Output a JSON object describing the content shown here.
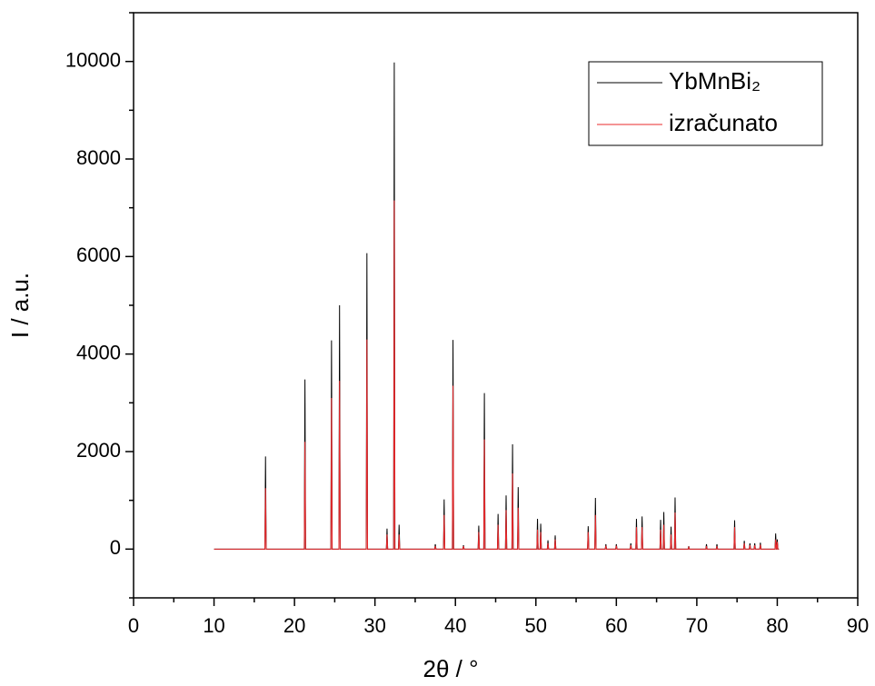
{
  "chart_data": {
    "type": "line",
    "xlabel": "2θ / °",
    "ylabel": "I / a.u.",
    "xlim": [
      0,
      90
    ],
    "xticks": [
      0,
      10,
      20,
      30,
      40,
      50,
      60,
      70,
      80,
      90
    ],
    "xminorticks": [
      5,
      15,
      25,
      35,
      45,
      55,
      65,
      75,
      85
    ],
    "ylim": [
      -1000,
      11000
    ],
    "yticks": [
      0,
      2000,
      4000,
      6000,
      8000,
      10000
    ],
    "yminorticks": [
      -1000,
      1000,
      3000,
      5000,
      7000,
      9000,
      11000
    ],
    "legend": "top-right",
    "x": [
      10,
      16.32,
      16.4,
      16.48,
      21.22,
      21.3,
      21.38,
      24.52,
      24.6,
      24.68,
      25.52,
      25.6,
      25.68,
      28.92,
      29.0,
      29.08,
      31.42,
      31.5,
      31.58,
      32.32,
      32.4,
      32.48,
      32.92,
      33.0,
      33.08,
      37.42,
      37.5,
      37.58,
      38.52,
      38.6,
      38.68,
      39.62,
      39.7,
      39.78,
      40.92,
      41.0,
      41.08,
      42.82,
      42.9,
      42.98,
      43.52,
      43.6,
      43.68,
      45.22,
      45.3,
      45.38,
      46.22,
      46.3,
      46.38,
      47.02,
      47.1,
      47.18,
      47.72,
      47.8,
      47.88,
      50.12,
      50.2,
      50.28,
      50.52,
      50.6,
      50.68,
      51.42,
      51.5,
      51.58,
      52.32,
      52.4,
      52.48,
      56.42,
      56.5,
      56.58,
      57.32,
      57.4,
      57.48,
      58.62,
      58.7,
      58.78,
      59.92,
      60.0,
      60.08,
      61.72,
      61.8,
      61.88,
      62.42,
      62.5,
      62.58,
      63.12,
      63.2,
      63.28,
      65.42,
      65.5,
      65.58,
      65.82,
      65.9,
      65.98,
      66.72,
      66.8,
      66.88,
      67.22,
      67.3,
      67.38,
      68.92,
      69.0,
      69.08,
      71.12,
      71.2,
      71.28,
      72.42,
      72.5,
      72.58,
      74.62,
      74.7,
      74.78,
      75.82,
      75.9,
      75.98,
      76.52,
      76.6,
      76.68,
      77.12,
      77.2,
      77.28,
      77.82,
      77.9,
      77.98,
      79.72,
      79.8,
      79.88,
      79.92,
      80.0,
      80.08,
      80.2
    ],
    "series": [
      {
        "name": "YbMnBi₂",
        "color": "#000000",
        "values": [
          0,
          0,
          1900,
          0,
          0,
          3480,
          0,
          0,
          4280,
          0,
          0,
          5000,
          0,
          0,
          6070,
          0,
          0,
          420,
          0,
          0,
          9980,
          0,
          0,
          500,
          0,
          0,
          100,
          0,
          0,
          1020,
          0,
          0,
          4290,
          0,
          0,
          80,
          0,
          0,
          480,
          0,
          0,
          3200,
          0,
          0,
          720,
          0,
          0,
          1100,
          0,
          0,
          2150,
          0,
          0,
          1270,
          0,
          0,
          620,
          0,
          0,
          520,
          0,
          0,
          180,
          0,
          0,
          280,
          0,
          0,
          470,
          0,
          0,
          1050,
          0,
          0,
          100,
          0,
          0,
          100,
          0,
          0,
          120,
          0,
          0,
          620,
          0,
          0,
          670,
          0,
          0,
          600,
          0,
          0,
          760,
          0,
          0,
          460,
          0,
          0,
          1060,
          0,
          0,
          60,
          0,
          0,
          100,
          0,
          0,
          100,
          0,
          0,
          590,
          0,
          0,
          170,
          0,
          0,
          120,
          0,
          0,
          120,
          0,
          0,
          130,
          0,
          0,
          320,
          0,
          0,
          200,
          0,
          0
        ]
      },
      {
        "name": "izračunato",
        "color": "#e8282b",
        "values": [
          0,
          0,
          1250,
          0,
          0,
          2200,
          0,
          0,
          3100,
          0,
          0,
          3450,
          0,
          0,
          4300,
          0,
          0,
          300,
          0,
          0,
          7150,
          0,
          0,
          300,
          0,
          0,
          60,
          0,
          0,
          700,
          0,
          0,
          3350,
          0,
          0,
          60,
          0,
          0,
          350,
          0,
          0,
          2250,
          0,
          0,
          500,
          0,
          0,
          800,
          0,
          0,
          1550,
          0,
          0,
          850,
          0,
          0,
          400,
          0,
          0,
          350,
          0,
          0,
          120,
          0,
          0,
          200,
          0,
          0,
          350,
          0,
          0,
          700,
          0,
          0,
          70,
          0,
          0,
          70,
          0,
          0,
          80,
          0,
          0,
          450,
          0,
          0,
          450,
          0,
          0,
          400,
          0,
          0,
          500,
          0,
          0,
          300,
          0,
          0,
          750,
          0,
          0,
          40,
          0,
          0,
          60,
          0,
          0,
          60,
          0,
          0,
          450,
          0,
          0,
          120,
          0,
          0,
          80,
          0,
          0,
          80,
          0,
          0,
          90,
          0,
          0,
          200,
          0,
          0,
          150,
          0,
          0
        ]
      }
    ]
  }
}
